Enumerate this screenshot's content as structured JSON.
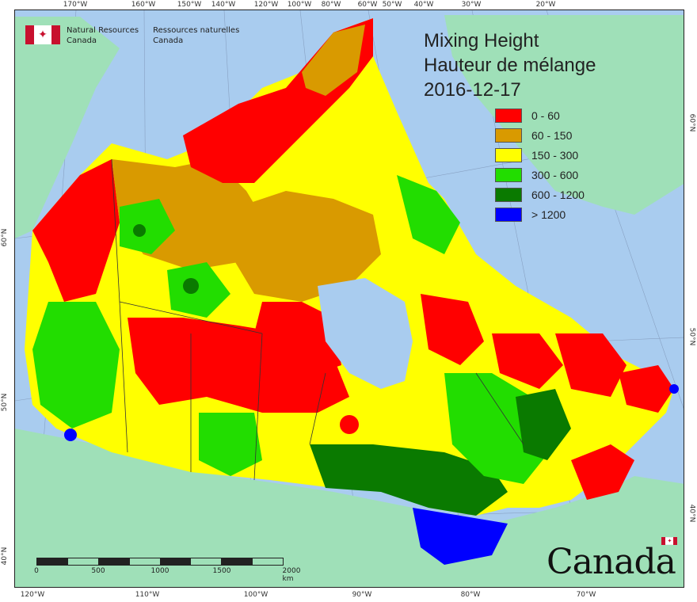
{
  "agency": {
    "en_line1": "Natural Resources",
    "en_line2": "Canada",
    "fr_line1": "Ressources naturelles",
    "fr_line2": "Canada"
  },
  "title": {
    "line1": "Mixing Height",
    "line2": "Hauteur de mélange",
    "date": "2016-12-17"
  },
  "legend": [
    {
      "label": "0 - 60",
      "color": "#ff0000"
    },
    {
      "label": "60 - 150",
      "color": "#d99a00"
    },
    {
      "label": "150 - 300",
      "color": "#ffff00"
    },
    {
      "label": "300 - 600",
      "color": "#22dd00"
    },
    {
      "label": "600 - 1200",
      "color": "#0a7a00"
    },
    {
      "label": "> 1200",
      "color": "#0000ff"
    }
  ],
  "colors": {
    "ocean": "#a9ccef",
    "land_other": "#9fe0b8",
    "grid": "#7a8fb0",
    "border": "#333333"
  },
  "axes": {
    "top": [
      "170°W",
      "160°W",
      "150°W",
      "140°W",
      "120°W",
      "100°W",
      "80°W",
      "60°W",
      "50°W",
      "40°W",
      "30°W",
      "20°W"
    ],
    "bottom": [
      "120°W",
      "110°W",
      "100°W",
      "90°W",
      "80°W",
      "70°W"
    ],
    "left": [
      "60°N",
      "50°N",
      "40°N"
    ],
    "right": [
      "60°N",
      "50°N",
      "40°N"
    ]
  },
  "scale": {
    "ticks": [
      "0",
      "500",
      "1000",
      "1500",
      "2000 km"
    ]
  },
  "wordmark": "Canada"
}
